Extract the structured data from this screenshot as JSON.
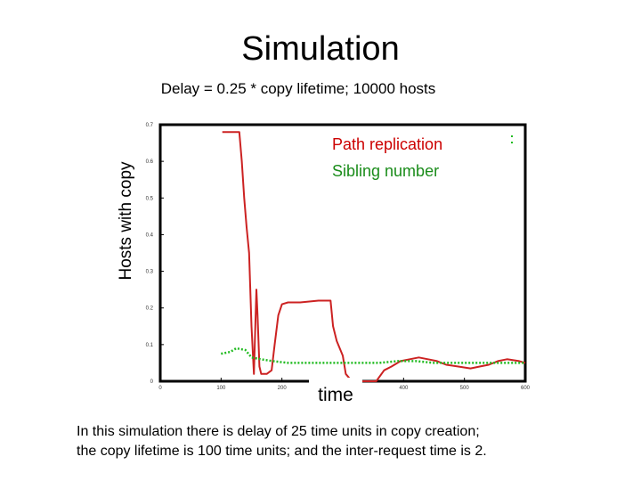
{
  "slide": {
    "title": "Simulation",
    "subtitle": "Delay = 0.25 * copy lifetime; 10000 hosts",
    "caption_lines": [
      "In this simulation there is delay of 25 time units in copy creation;",
      "the copy lifetime is 100 time units; and the inter-request time is 2."
    ]
  },
  "chart_data": {
    "type": "line",
    "title": "",
    "xlabel": "time",
    "ylabel": "Hosts with copy",
    "xlim": [
      0,
      600
    ],
    "ylim": [
      0,
      0.7
    ],
    "x_ticks": [
      0,
      100,
      200,
      300,
      400,
      500,
      600
    ],
    "y_ticks": [
      0,
      0.1,
      0.2,
      0.3,
      0.4,
      0.5,
      0.6,
      0.7
    ],
    "x_tick_labels": [
      "0",
      "100",
      "200",
      "300",
      "400",
      "500",
      "600"
    ],
    "y_tick_labels": [
      "0",
      "0.1",
      "0.2",
      "0.3",
      "0.4",
      "0.5",
      "0.6",
      "0.7"
    ],
    "grid": false,
    "legend_position": "top-right",
    "series": [
      {
        "name": "Path replication",
        "color": "#cc2222",
        "style": "solid",
        "points": [
          [
            102,
            0.68
          ],
          [
            130,
            0.68
          ],
          [
            134,
            0.6
          ],
          [
            138,
            0.5
          ],
          [
            142,
            0.42
          ],
          [
            146,
            0.35
          ],
          [
            150,
            0.15
          ],
          [
            154,
            0.02
          ],
          [
            158,
            0.25
          ],
          [
            160,
            0.18
          ],
          [
            163,
            0.04
          ],
          [
            166,
            0.02
          ],
          [
            175,
            0.02
          ],
          [
            183,
            0.03
          ],
          [
            188,
            0.1
          ],
          [
            194,
            0.18
          ],
          [
            200,
            0.21
          ],
          [
            210,
            0.215
          ],
          [
            230,
            0.215
          ],
          [
            260,
            0.22
          ],
          [
            280,
            0.22
          ],
          [
            284,
            0.15
          ],
          [
            290,
            0.11
          ],
          [
            295,
            0.09
          ],
          [
            300,
            0.07
          ],
          [
            305,
            0.02
          ],
          [
            315,
            0.0
          ],
          [
            335,
            0.0
          ],
          [
            355,
            0.0
          ],
          [
            368,
            0.03
          ],
          [
            380,
            0.04
          ],
          [
            395,
            0.055
          ],
          [
            410,
            0.06
          ],
          [
            425,
            0.065
          ],
          [
            440,
            0.06
          ],
          [
            455,
            0.055
          ],
          [
            470,
            0.045
          ],
          [
            490,
            0.04
          ],
          [
            510,
            0.035
          ],
          [
            525,
            0.04
          ],
          [
            540,
            0.045
          ],
          [
            555,
            0.055
          ],
          [
            570,
            0.06
          ],
          [
            590,
            0.055
          ],
          [
            600,
            0.05
          ]
        ]
      },
      {
        "name": "Sibling number",
        "color": "#22bb22",
        "style": "dotted",
        "points": [
          [
            100,
            0.075
          ],
          [
            115,
            0.08
          ],
          [
            125,
            0.09
          ],
          [
            140,
            0.085
          ],
          [
            150,
            0.065
          ],
          [
            165,
            0.06
          ],
          [
            185,
            0.055
          ],
          [
            210,
            0.05
          ],
          [
            240,
            0.05
          ],
          [
            270,
            0.05
          ],
          [
            300,
            0.05
          ],
          [
            330,
            0.05
          ],
          [
            360,
            0.05
          ],
          [
            390,
            0.055
          ],
          [
            420,
            0.055
          ],
          [
            450,
            0.05
          ],
          [
            480,
            0.05
          ],
          [
            510,
            0.05
          ],
          [
            540,
            0.05
          ],
          [
            570,
            0.05
          ],
          [
            600,
            0.05
          ]
        ]
      }
    ]
  },
  "colors": {
    "axis": "#000000",
    "path_replication_label": "#cc0000",
    "sibling_number_label": "#1a8c1a"
  }
}
